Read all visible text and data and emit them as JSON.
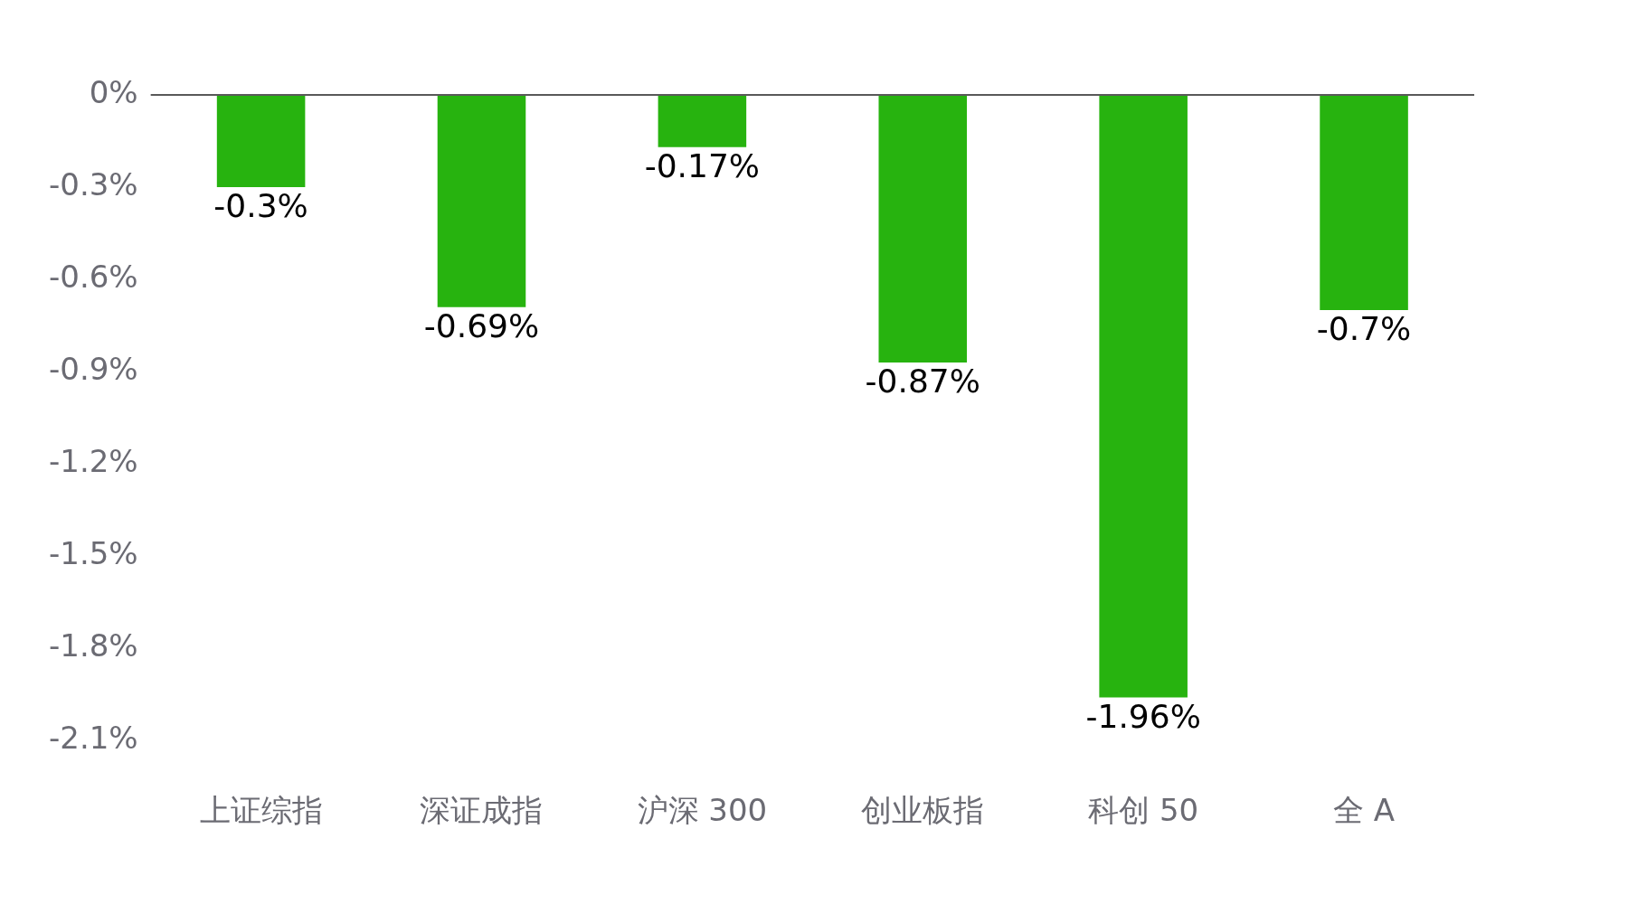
{
  "chart_data": {
    "type": "bar",
    "categories": [
      "上证综指",
      "深证成指",
      "沪深 300",
      "创业板指",
      "科创 50",
      "全 A"
    ],
    "values": [
      -0.3,
      -0.69,
      -0.17,
      -0.87,
      -1.96,
      -0.7
    ],
    "color": "#27b30f",
    "value_labels": [
      "-0.3%",
      "-0.69%",
      "-0.17%",
      "-0.87%",
      "-1.96%",
      "-0.7%"
    ],
    "ylim": [
      -2.1,
      0
    ],
    "yticks": [
      {
        "value": 0,
        "label": "0%"
      },
      {
        "value": -0.3,
        "label": "-0.3%"
      },
      {
        "value": -0.6,
        "label": "-0.6%"
      },
      {
        "value": -0.9,
        "label": "-0.9%"
      },
      {
        "value": -1.2,
        "label": "-1.2%"
      },
      {
        "value": -1.5,
        "label": "-1.5%"
      },
      {
        "value": -1.8,
        "label": "-1.8%"
      },
      {
        "value": -2.1,
        "label": "-2.1%"
      }
    ],
    "ref_lines": [
      {
        "axis": "y",
        "value": 0,
        "color": "#595959"
      }
    ],
    "grid": false,
    "legend": false
  }
}
